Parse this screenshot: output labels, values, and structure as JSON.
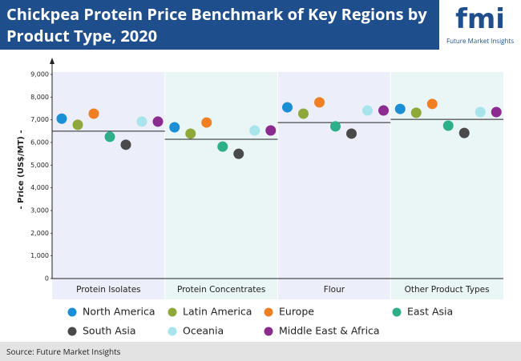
{
  "chart_data": {
    "type": "dot",
    "title": "Chickpea Protein Price Benchmark of Key Regions by Product Type, 2020",
    "y_label": "- Price (US$/MT) -",
    "source": "Source: Future Market Insights",
    "categories": [
      "Protein Isolates",
      "Protein Concentrates",
      "Flour",
      "Other Product Types"
    ],
    "ylim": [
      0,
      9000
    ],
    "yticks": [
      0,
      {
        "value": 1000,
        "label": "1,000"
      },
      {
        "value": 2000,
        "label": "2,000"
      },
      {
        "value": 3000,
        "label": "3,000"
      },
      {
        "value": 4000,
        "label": "4,000"
      },
      {
        "value": 5000,
        "label": "5,000"
      },
      {
        "value": 6000,
        "label": "6,000"
      },
      {
        "value": 7000,
        "label": "7,000"
      },
      {
        "value": 8000,
        "label": "8,000"
      },
      {
        "value": 9000,
        "label": "9,000"
      }
    ],
    "benchmark_lines": [
      6500,
      6140,
      6880,
      7020
    ],
    "series": [
      {
        "name": "North America",
        "color": "#1a8fd6",
        "values": [
          7050,
          6670,
          7550,
          7480
        ]
      },
      {
        "name": "Latin America",
        "color": "#8ea83a",
        "values": [
          6780,
          6390,
          7270,
          7310
        ]
      },
      {
        "name": "Europe",
        "color": "#f07f22",
        "values": [
          7270,
          6880,
          7770,
          7700
        ]
      },
      {
        "name": "East Asia",
        "color": "#2db08a",
        "values": [
          6250,
          5820,
          6710,
          6740
        ]
      },
      {
        "name": "South Asia",
        "color": "#4a4a4a",
        "values": [
          5900,
          5500,
          6390,
          6420
        ]
      },
      {
        "name": "Oceania",
        "color": "#a8e4ec",
        "values": [
          6920,
          6530,
          7410,
          7340
        ]
      },
      {
        "name": "Middle East & Africa",
        "color": "#8b2a8f",
        "values": [
          6920,
          6530,
          7410,
          7340
        ]
      }
    ]
  },
  "logo": {
    "mark": "fmi",
    "name": "Future Market Insights"
  }
}
